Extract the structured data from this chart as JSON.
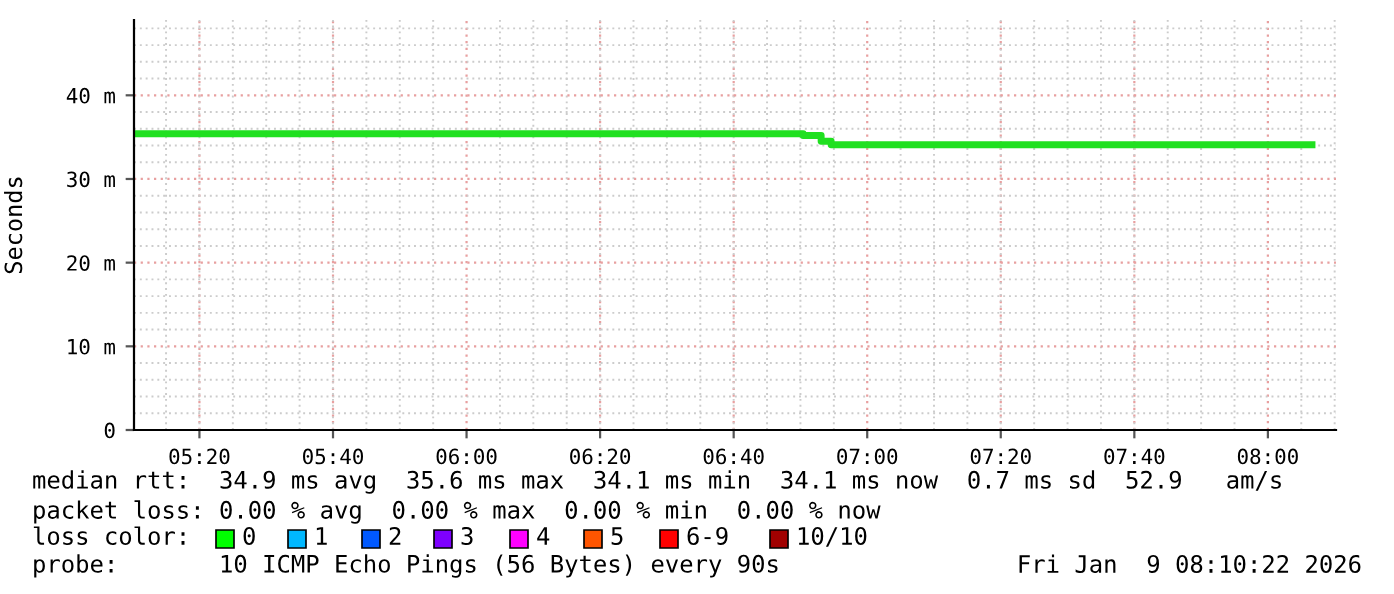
{
  "chart_data": {
    "type": "step",
    "ylabel": "Seconds",
    "x": [
      5.17,
      6.8,
      6.84,
      6.885,
      6.91,
      8.11
    ],
    "series": [
      {
        "color": "#20e020",
        "values": [
          35.4,
          35.4,
          35.2,
          34.5,
          34.1,
          34.1
        ]
      }
    ],
    "xlim": [
      5.17,
      8.17
    ],
    "xticks": [
      {
        "value": 5.3333,
        "label": "05:20"
      },
      {
        "value": 5.6667,
        "label": "05:40"
      },
      {
        "value": 6.0,
        "label": "06:00"
      },
      {
        "value": 6.3333,
        "label": "06:20"
      },
      {
        "value": 6.6667,
        "label": "06:40"
      },
      {
        "value": 7.0,
        "label": "07:00"
      },
      {
        "value": 7.3333,
        "label": "07:20"
      },
      {
        "value": 7.6667,
        "label": "07:40"
      },
      {
        "value": 8.0,
        "label": "08:00"
      }
    ],
    "ylim": [
      0,
      49
    ],
    "yticks": [
      0,
      {
        "value": 10,
        "label": "10 m"
      },
      {
        "value": 20,
        "label": "20 m"
      },
      {
        "value": 30,
        "label": "30 m"
      },
      {
        "value": 40,
        "label": "40 m"
      }
    ],
    "grid": true,
    "annotations": [
      "median rtt:  34.9 ms avg  35.6 ms max  34.1 ms min  34.1 ms now  0.7 ms sd  52.9   am/s",
      "packet loss: 0.00 % avg  0.00 % max  0.00 % min  0.00 % now",
      "loss color:",
      "0",
      "1",
      "2",
      "3",
      "4",
      "5",
      "6-9",
      "10/10",
      "probe:       10 ICMP Echo Pings (56 Bytes) every 90s",
      "Fri Jan  9 08:10:22 2026"
    ]
  }
}
